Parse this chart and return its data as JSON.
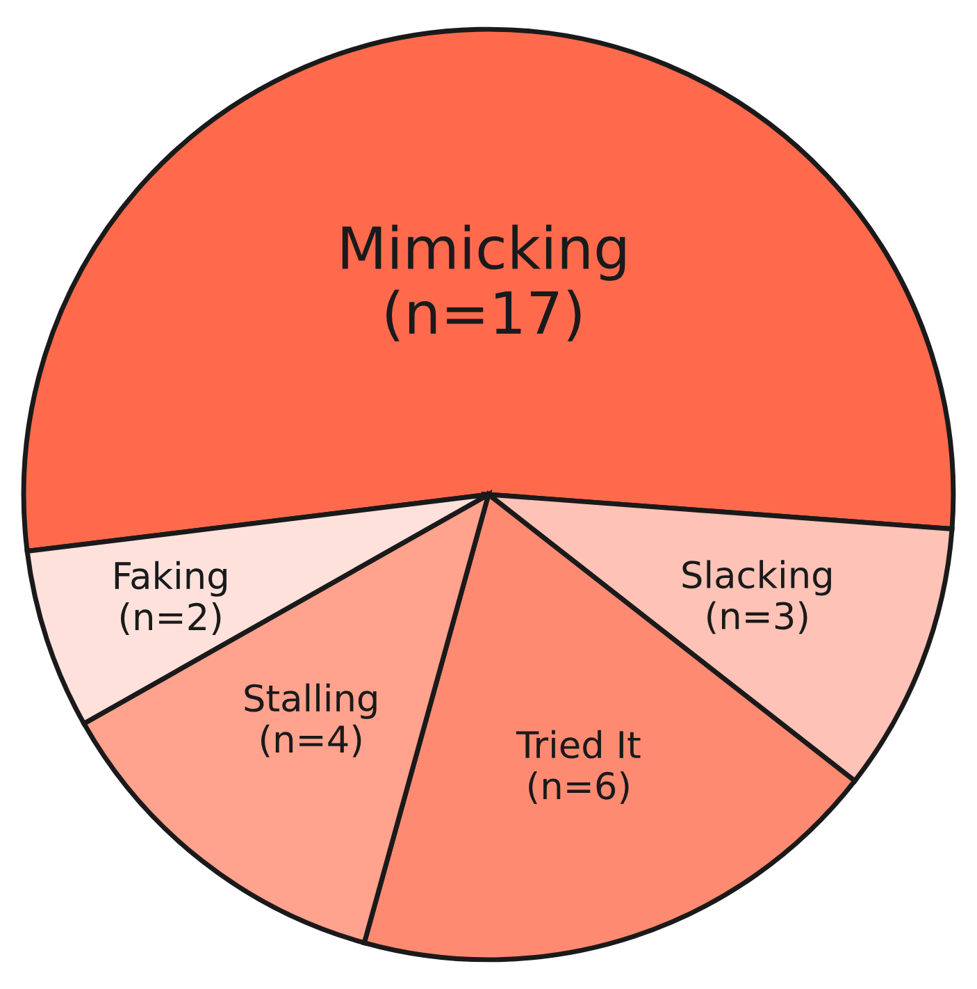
{
  "chart_data": {
    "type": "pie",
    "categories": [
      "Mimicking",
      "Slacking",
      "Tried It",
      "Stalling",
      "Faking"
    ],
    "values": [
      17,
      3,
      6,
      4,
      2
    ],
    "value_labels": [
      "(n=17)",
      "(n=3)",
      "(n=6)",
      "(n=4)",
      "(n=2)"
    ],
    "colors": [
      "#ff6a4d",
      "#ffc2b6",
      "#ff8a72",
      "#ffa28e",
      "#ffe1dc"
    ],
    "legend": false
  }
}
